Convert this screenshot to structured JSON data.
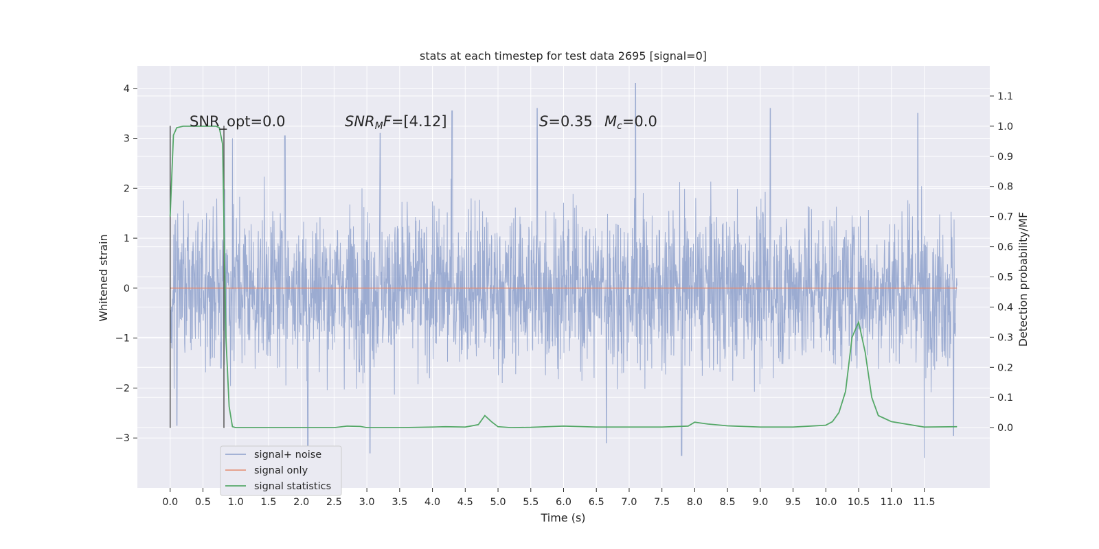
{
  "chart_data": {
    "type": "line",
    "title": "stats at each timestep for test data 2695 [signal=0]",
    "xlabel": "Time (s)",
    "ylabel": "Whitened strain",
    "y2label": "Detection probability/MF",
    "xlim": [
      -0.5,
      12.5
    ],
    "ylim": [
      -4.0,
      4.45
    ],
    "y2lim": [
      -0.2,
      1.2
    ],
    "x_ticks": [
      0.0,
      0.5,
      1.0,
      1.5,
      2.0,
      2.5,
      3.0,
      3.5,
      4.0,
      4.5,
      5.0,
      5.5,
      6.0,
      6.5,
      7.0,
      7.5,
      8.0,
      8.5,
      9.0,
      9.5,
      10.0,
      10.5,
      11.0,
      11.5
    ],
    "x_tick_labels": [
      "0.0",
      "0.5",
      "1.0",
      "1.5",
      "2.0",
      "2.5",
      "3.0",
      "3.5",
      "4.0",
      "4.5",
      "5.0",
      "5.5",
      "6.0",
      "6.5",
      "7.0",
      "7.5",
      "8.0",
      "8.5",
      "9.0",
      "9.5",
      "10.0",
      "10.5",
      "11.0",
      "11.5"
    ],
    "y_ticks": [
      4,
      3,
      2,
      1,
      0,
      -1,
      -2,
      -3
    ],
    "y_tick_labels": [
      "4",
      "3",
      "2",
      "1",
      "0",
      "−1",
      "−2",
      "−3"
    ],
    "y2_ticks": [
      1.1,
      1.0,
      0.9,
      0.8,
      0.7,
      0.6,
      0.5,
      0.4,
      0.3,
      0.2,
      0.1,
      0.0
    ],
    "y2_tick_labels": [
      "1.1",
      "1.0",
      "0.9",
      "0.8",
      "0.7",
      "0.6",
      "0.5",
      "0.4",
      "0.3",
      "0.2",
      "0.1",
      "0.0"
    ],
    "grid": true,
    "legend_position": "lower-left",
    "series": [
      {
        "name": "signal+ noise",
        "color": "#8da0cb",
        "axis": "left",
        "x_range": [
          0.0,
          12.0
        ],
        "typical_band": [
          -2.0,
          2.2
        ],
        "extremes": [
          {
            "x": 0.1,
            "y": -2.75
          },
          {
            "x": 0.95,
            "y": 3.0
          },
          {
            "x": 1.75,
            "y": 3.05
          },
          {
            "x": 2.1,
            "y": -3.2
          },
          {
            "x": 3.2,
            "y": 3.1
          },
          {
            "x": 3.05,
            "y": -3.3
          },
          {
            "x": 4.3,
            "y": 3.55
          },
          {
            "x": 5.6,
            "y": 3.6
          },
          {
            "x": 6.65,
            "y": -3.1
          },
          {
            "x": 7.1,
            "y": 4.1
          },
          {
            "x": 7.8,
            "y": -3.35
          },
          {
            "x": 9.15,
            "y": 3.6
          },
          {
            "x": 11.4,
            "y": 3.5
          },
          {
            "x": 11.5,
            "y": -3.4
          },
          {
            "x": 11.95,
            "y": -2.95
          }
        ]
      },
      {
        "name": "signal only",
        "color": "#e5896d",
        "axis": "left",
        "x": [
          0.0,
          12.0
        ],
        "y": [
          0.0,
          0.0
        ]
      },
      {
        "name": "signal statistics",
        "color": "#55a868",
        "axis": "right",
        "x": [
          0.0,
          0.05,
          0.1,
          0.2,
          0.3,
          0.4,
          0.5,
          0.6,
          0.65,
          0.7,
          0.75,
          0.8,
          0.85,
          0.9,
          0.95,
          1.0,
          1.5,
          2.0,
          2.5,
          2.7,
          2.9,
          3.0,
          3.5,
          4.0,
          4.2,
          4.5,
          4.7,
          4.8,
          4.9,
          5.0,
          5.2,
          5.5,
          6.0,
          6.5,
          7.0,
          7.5,
          7.9,
          8.0,
          8.2,
          8.5,
          9.0,
          9.5,
          10.0,
          10.1,
          10.2,
          10.3,
          10.4,
          10.5,
          10.6,
          10.7,
          10.8,
          10.9,
          11.0,
          11.5,
          12.0
        ],
        "y": [
          0.7,
          0.97,
          0.995,
          1.0,
          1.0,
          1.0,
          1.0,
          1.0,
          1.0,
          1.0,
          0.995,
          0.94,
          0.3,
          0.07,
          0.003,
          0.0,
          0.0,
          0.0,
          0.0,
          0.005,
          0.004,
          0.0,
          0.0,
          0.002,
          0.003,
          0.002,
          0.01,
          0.04,
          0.02,
          0.003,
          0.0,
          0.001,
          0.005,
          0.002,
          0.002,
          0.002,
          0.005,
          0.018,
          0.012,
          0.006,
          0.002,
          0.002,
          0.008,
          0.02,
          0.05,
          0.12,
          0.3,
          0.35,
          0.25,
          0.1,
          0.04,
          0.03,
          0.02,
          0.002,
          0.003
        ]
      }
    ],
    "vlines": [
      {
        "x": 0.0,
        "y_range": [
          -2.8,
          3.25
        ],
        "color": "#555555"
      },
      {
        "x": 0.82,
        "y_range": [
          -2.8,
          3.25
        ],
        "color": "#555555"
      }
    ],
    "annotations": [
      {
        "text": "SNR_opt=0.0"
      },
      {
        "text": "SNR_MF=[4.12]"
      },
      {
        "text": "S=0.35"
      },
      {
        "text": "M_c=0.0"
      }
    ]
  }
}
